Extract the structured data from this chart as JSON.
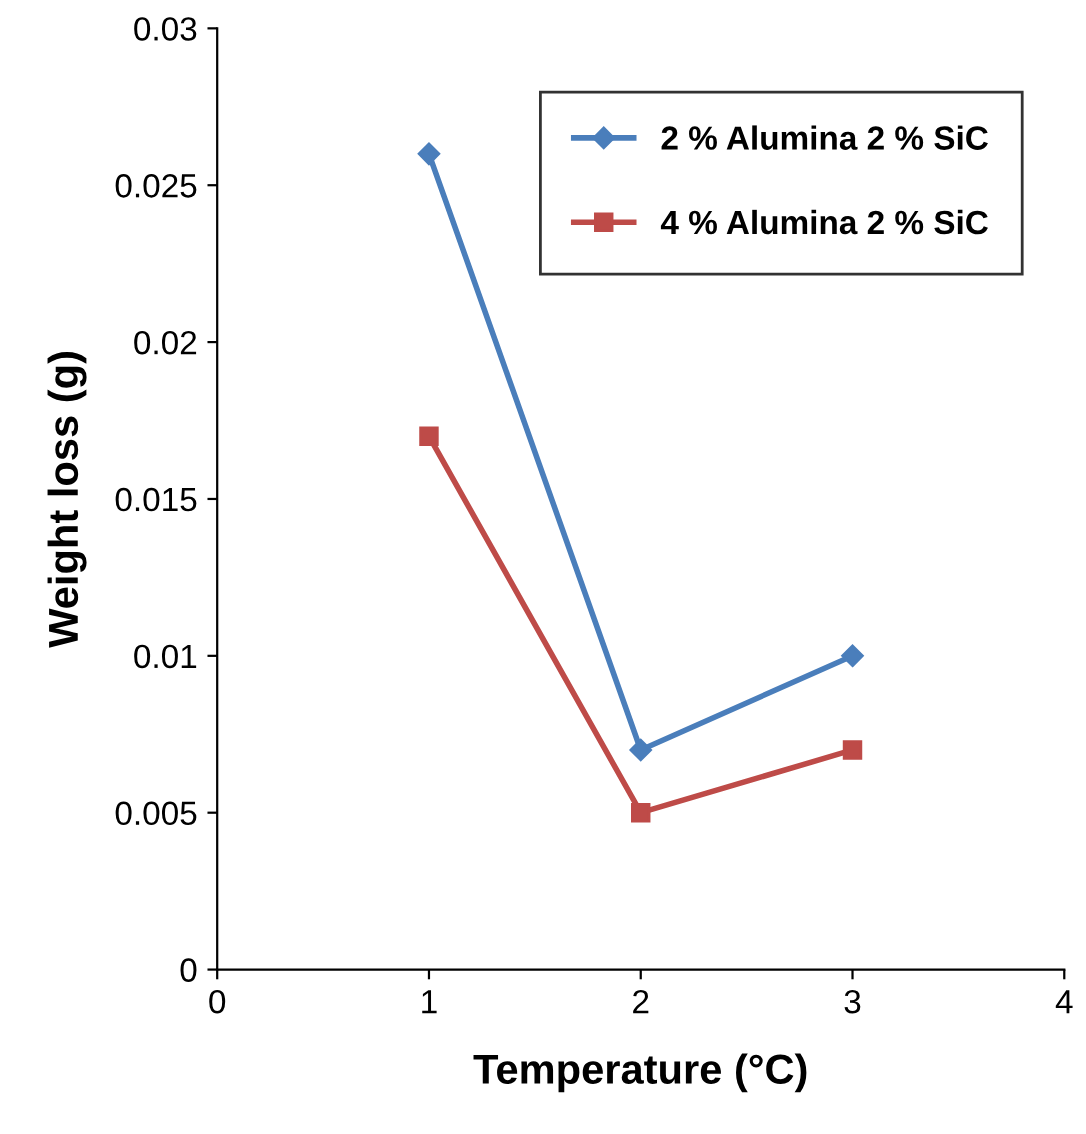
{
  "chart_data": {
    "type": "line",
    "xlabel": "Temperature (°C)",
    "ylabel": "Weight loss (g)",
    "x": [
      1,
      2,
      3
    ],
    "series": [
      {
        "name": "2 % Alumina 2 % SiC",
        "color": "#4a7ebb",
        "marker": "diamond",
        "values": [
          0.026,
          0.007,
          0.01
        ]
      },
      {
        "name": "4 % Alumina 2 % SiC",
        "color": "#be4b48",
        "marker": "square",
        "values": [
          0.017,
          0.005,
          0.007
        ]
      }
    ],
    "xlim": [
      0,
      4
    ],
    "xticks": [
      0,
      1,
      2,
      3,
      4
    ],
    "ylim": [
      0,
      0.03
    ],
    "yticks": [
      0,
      0.005,
      0.01,
      0.015,
      0.02,
      0.025,
      0.03
    ],
    "legend": "top right",
    "line_style": "solid",
    "grid": false
  }
}
